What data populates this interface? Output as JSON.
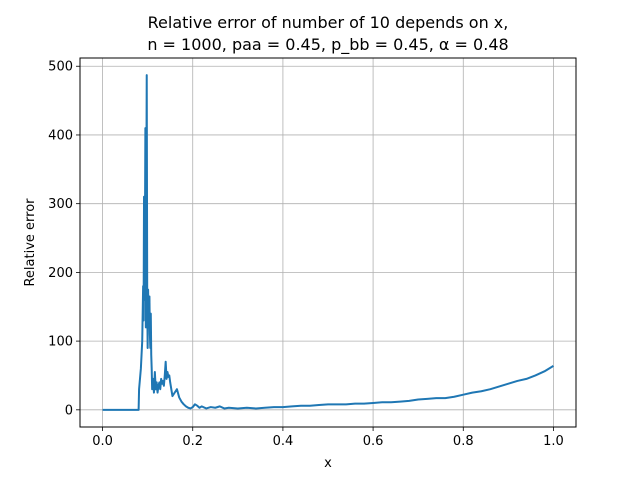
{
  "chart_data": {
    "type": "line",
    "title_line1": "Relative error of number of 10 depends on x,",
    "title_line2": "n = 1000, paa = 0.45, p_bb = 0.45, α = 0.48",
    "xlabel": "x",
    "ylabel": "Relative error",
    "xlim": [
      -0.05,
      1.05
    ],
    "ylim": [
      -25,
      512
    ],
    "xticks": [
      0.0,
      0.2,
      0.4,
      0.6,
      0.8,
      1.0
    ],
    "xtick_labels": [
      "0.0",
      "0.2",
      "0.4",
      "0.6",
      "0.8",
      "1.0"
    ],
    "yticks": [
      0,
      100,
      200,
      300,
      400,
      500
    ],
    "ytick_labels": [
      "0",
      "100",
      "200",
      "300",
      "400",
      "500"
    ],
    "grid": true,
    "colors": {
      "line": "#1f77b4",
      "grid": "#b0b0b0",
      "axes": "#000000"
    },
    "series": [
      {
        "x": [
          0.0,
          0.02,
          0.04,
          0.06,
          0.08,
          0.081,
          0.085,
          0.088,
          0.09,
          0.091,
          0.092,
          0.093,
          0.094,
          0.095,
          0.096,
          0.097,
          0.098,
          0.099,
          0.1,
          0.101,
          0.102,
          0.103,
          0.104,
          0.105,
          0.106,
          0.107,
          0.108,
          0.109,
          0.11,
          0.112,
          0.114,
          0.116,
          0.118,
          0.12,
          0.122,
          0.124,
          0.126,
          0.128,
          0.13,
          0.132,
          0.134,
          0.136,
          0.138,
          0.14,
          0.142,
          0.144,
          0.146,
          0.148,
          0.15,
          0.155,
          0.16,
          0.165,
          0.17,
          0.175,
          0.18,
          0.185,
          0.19,
          0.195,
          0.2,
          0.205,
          0.21,
          0.215,
          0.22,
          0.23,
          0.24,
          0.25,
          0.26,
          0.27,
          0.28,
          0.3,
          0.32,
          0.34,
          0.36,
          0.38,
          0.4,
          0.42,
          0.44,
          0.46,
          0.48,
          0.5,
          0.52,
          0.54,
          0.56,
          0.58,
          0.6,
          0.62,
          0.64,
          0.66,
          0.68,
          0.7,
          0.72,
          0.74,
          0.76,
          0.78,
          0.8,
          0.82,
          0.84,
          0.86,
          0.88,
          0.9,
          0.92,
          0.94,
          0.96,
          0.98,
          1.0
        ],
        "y": [
          0,
          0,
          0,
          0,
          0,
          30,
          60,
          100,
          180,
          130,
          310,
          160,
          250,
          410,
          120,
          300,
          487,
          180,
          90,
          175,
          140,
          120,
          165,
          110,
          90,
          140,
          80,
          60,
          30,
          45,
          25,
          55,
          30,
          40,
          25,
          35,
          40,
          30,
          45,
          38,
          42,
          35,
          50,
          70,
          45,
          55,
          48,
          50,
          40,
          20,
          25,
          30,
          18,
          12,
          8,
          5,
          3,
          2,
          4,
          8,
          6,
          3,
          5,
          2,
          4,
          3,
          5,
          2,
          3,
          2,
          3,
          2,
          3,
          4,
          4,
          5,
          6,
          6,
          7,
          8,
          8,
          8,
          9,
          9,
          10,
          11,
          11,
          12,
          13,
          15,
          16,
          17,
          17,
          19,
          22,
          25,
          27,
          30,
          34,
          38,
          42,
          45,
          50,
          56,
          64
        ]
      }
    ]
  }
}
